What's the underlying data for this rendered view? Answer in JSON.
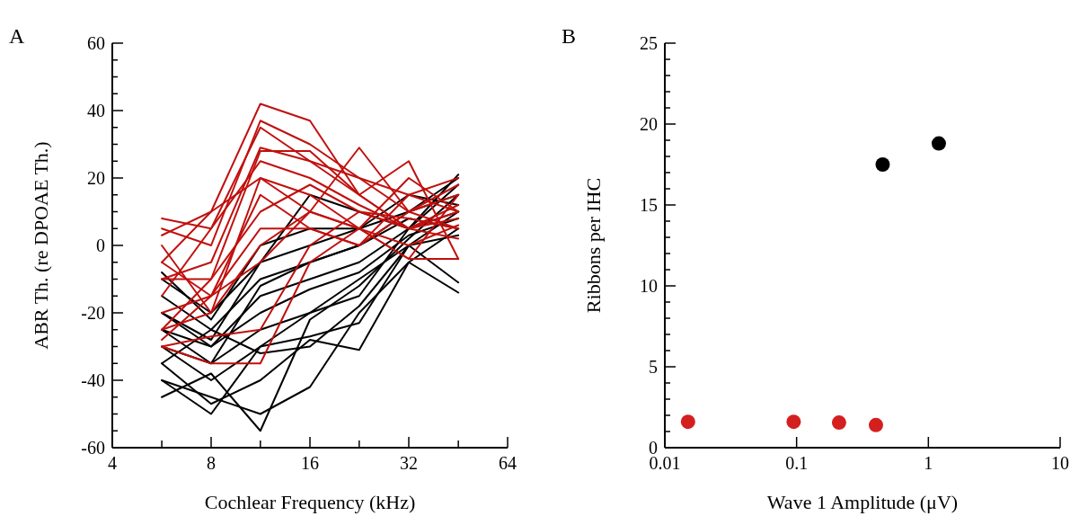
{
  "chart_data": [
    {
      "type": "line",
      "title": "A",
      "xlabel": "Cochlear Frequency (kHz)",
      "ylabel": "ABR Th. (re DPOAE Th.)",
      "log": "x",
      "marker": "none",
      "line_style": "solid",
      "grid": false,
      "x": [
        5.66,
        8,
        11.3,
        16,
        22.6,
        32,
        45.3
      ],
      "xlim": [
        4,
        64
      ],
      "xticks": [
        4,
        {
          "value": 5.66,
          "label": null
        },
        8,
        {
          "value": 11.3,
          "label": null
        },
        16,
        {
          "value": 22.6,
          "label": null
        },
        32,
        {
          "value": 45.3,
          "label": null
        },
        64
      ],
      "ylim": [
        -60,
        60
      ],
      "yticks": [
        -60,
        {
          "value": -55,
          "label": null
        },
        {
          "value": -50,
          "label": null
        },
        {
          "value": -45,
          "label": null
        },
        -40,
        {
          "value": -35,
          "label": null
        },
        {
          "value": -30,
          "label": null
        },
        {
          "value": -25,
          "label": null
        },
        -20,
        {
          "value": -15,
          "label": null
        },
        {
          "value": -10,
          "label": null
        },
        {
          "value": -5,
          "label": null
        },
        0,
        {
          "value": 5,
          "label": null
        },
        {
          "value": 10,
          "label": null
        },
        {
          "value": 15,
          "label": null
        },
        20,
        {
          "value": 25,
          "label": null
        },
        {
          "value": 30,
          "label": null
        },
        {
          "value": 35,
          "label": null
        },
        40,
        {
          "value": 45,
          "label": null
        },
        {
          "value": 50,
          "label": null
        },
        {
          "value": 55,
          "label": null
        },
        60
      ],
      "series": [
        {
          "color": "#000000",
          "values": [
            -40,
            -50,
            -30,
            -20,
            -10,
            0,
            10
          ]
        },
        {
          "color": "#000000",
          "values": [
            -45,
            -38,
            -55,
            -22,
            -12,
            2,
            15
          ]
        },
        {
          "color": "#000000",
          "values": [
            -40,
            -45,
            -50,
            -42,
            -20,
            -5,
            5
          ]
        },
        {
          "color": "#000000",
          "values": [
            -35,
            -47,
            -40,
            -28,
            -31,
            -5,
            -14
          ]
        },
        {
          "color": "#000000",
          "values": [
            -30,
            -40,
            -30,
            -27,
            -23,
            0,
            -11
          ]
        },
        {
          "color": "#000000",
          "values": [
            -25,
            -35,
            -25,
            -20,
            -15,
            5,
            21
          ]
        },
        {
          "color": "#000000",
          "values": [
            -20,
            -30,
            -15,
            -10,
            -5,
            5,
            18
          ]
        },
        {
          "color": "#000000",
          "values": [
            -15,
            -25,
            -10,
            -5,
            0,
            10,
            15
          ]
        },
        {
          "color": "#000000",
          "values": [
            -10,
            -20,
            -5,
            0,
            5,
            15,
            12
          ]
        },
        {
          "color": "#000000",
          "values": [
            -8,
            -22,
            0,
            5,
            5,
            10,
            20
          ]
        },
        {
          "color": "#000000",
          "values": [
            -25,
            -30,
            -20,
            -13,
            -8,
            3,
            8
          ]
        },
        {
          "color": "#000000",
          "values": [
            -35,
            -25,
            -32,
            -30,
            -18,
            0,
            3
          ]
        },
        {
          "color": "#000000",
          "values": [
            -20,
            -28,
            -5,
            15,
            10,
            5,
            10
          ]
        },
        {
          "color": "#000000",
          "values": [
            -30,
            -35,
            -12,
            -5,
            0,
            8,
            5
          ]
        },
        {
          "color": "#c0100e",
          "values": [
            -5,
            10,
            42,
            37,
            15,
            5,
            10
          ]
        },
        {
          "color": "#c0100e",
          "values": [
            5,
            0,
            37,
            30,
            20,
            10,
            5
          ]
        },
        {
          "color": "#c0100e",
          "values": [
            8,
            5,
            35,
            25,
            15,
            25,
            -4
          ]
        },
        {
          "color": "#c0100e",
          "values": [
            -10,
            -5,
            29,
            25,
            20,
            15,
            20
          ]
        },
        {
          "color": "#c0100e",
          "values": [
            -25,
            -10,
            28,
            28,
            15,
            5,
            8
          ]
        },
        {
          "color": "#c0100e",
          "values": [
            0,
            -20,
            20,
            10,
            29,
            10,
            15
          ]
        },
        {
          "color": "#c0100e",
          "values": [
            -30,
            -35,
            -35,
            -5,
            5,
            -4,
            -4
          ]
        },
        {
          "color": "#c0100e",
          "values": [
            -30,
            -27,
            -25,
            0,
            10,
            5,
            12
          ]
        },
        {
          "color": "#c0100e",
          "values": [
            -20,
            -15,
            -5,
            10,
            5,
            20,
            10
          ]
        },
        {
          "color": "#c0100e",
          "values": [
            -10,
            -10,
            10,
            18,
            10,
            8,
            5
          ]
        },
        {
          "color": "#c0100e",
          "values": [
            -5,
            -15,
            15,
            5,
            0,
            10,
            18
          ]
        },
        {
          "color": "#c0100e",
          "values": [
            -15,
            5,
            25,
            20,
            12,
            5,
            2
          ]
        },
        {
          "color": "#c0100e",
          "values": [
            -25,
            -20,
            0,
            10,
            5,
            0,
            6
          ]
        },
        {
          "color": "#c0100e",
          "values": [
            3,
            10,
            20,
            15,
            5,
            -4,
            15
          ]
        },
        {
          "color": "#c0100e",
          "values": [
            -28,
            -15,
            5,
            5,
            0,
            15,
            10
          ]
        }
      ]
    },
    {
      "type": "scatter",
      "title": "B",
      "xlabel": "Wave 1 Amplitude (μV)",
      "ylabel": "Ribbons per IHC",
      "log": "x",
      "marker": "circle",
      "grid": false,
      "xlim": [
        0.01,
        10
      ],
      "xticks": [
        0.01,
        0.1,
        1,
        10
      ],
      "ylim": [
        0,
        25
      ],
      "yticks": [
        0,
        {
          "value": 1,
          "label": null
        },
        {
          "value": 2,
          "label": null
        },
        {
          "value": 3,
          "label": null
        },
        {
          "value": 4,
          "label": null
        },
        5,
        {
          "value": 6,
          "label": null
        },
        {
          "value": 7,
          "label": null
        },
        {
          "value": 8,
          "label": null
        },
        {
          "value": 9,
          "label": null
        },
        10,
        {
          "value": 11,
          "label": null
        },
        {
          "value": 12,
          "label": null
        },
        {
          "value": 13,
          "label": null
        },
        {
          "value": 14,
          "label": null
        },
        15,
        {
          "value": 16,
          "label": null
        },
        {
          "value": 17,
          "label": null
        },
        {
          "value": 18,
          "label": null
        },
        {
          "value": 19,
          "label": null
        },
        20,
        {
          "value": 21,
          "label": null
        },
        {
          "value": 22,
          "label": null
        },
        {
          "value": 23,
          "label": null
        },
        {
          "value": 24,
          "label": null
        },
        25
      ],
      "series": [
        {
          "color": "#000000",
          "x": [
            0.45,
            1.2
          ],
          "values": [
            17.5,
            18.8
          ]
        },
        {
          "color": "#d41f1f",
          "x": [
            0.015,
            0.095,
            0.21,
            0.4
          ],
          "values": [
            1.6,
            1.6,
            1.55,
            1.4
          ]
        }
      ]
    }
  ]
}
